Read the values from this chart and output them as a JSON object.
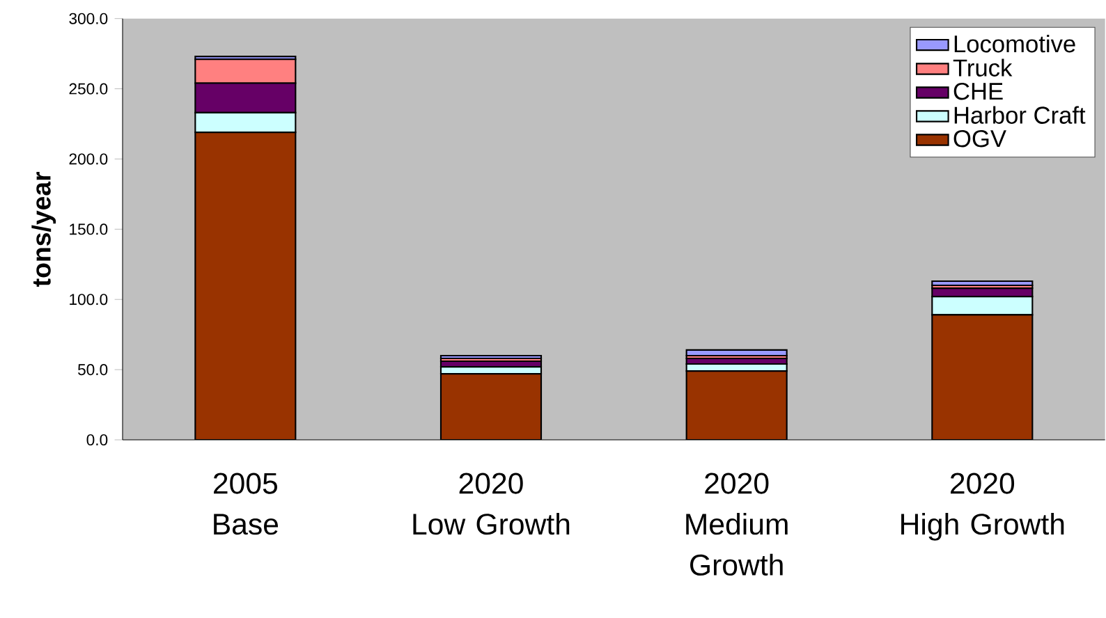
{
  "chart_data": {
    "type": "bar",
    "stacked": true,
    "ylabel": "tons/year",
    "categories": [
      "2005\nBase",
      "2020\nLow Growth",
      "2020\nMedium Growth",
      "2020\nHigh Growth"
    ],
    "series": [
      {
        "name": "OGV",
        "color": "#993300",
        "values": [
          219,
          47,
          49,
          89
        ]
      },
      {
        "name": "Harbor Craft",
        "color": "#ccffff",
        "values": [
          14,
          5,
          5,
          13
        ]
      },
      {
        "name": "CHE",
        "color": "#660066",
        "values": [
          21,
          4,
          4,
          6
        ]
      },
      {
        "name": "Truck",
        "color": "#ff8080",
        "values": [
          17,
          2,
          2,
          2
        ]
      },
      {
        "name": "Locomotive",
        "color": "#9999ff",
        "values": [
          2,
          2,
          4,
          3
        ]
      }
    ],
    "ylim": [
      0,
      300
    ],
    "yticks": [
      {
        "value": 0,
        "label": "0.0"
      },
      {
        "value": 50,
        "label": "50.0"
      },
      {
        "value": 100,
        "label": "100.0"
      },
      {
        "value": 150,
        "label": "150.0"
      },
      {
        "value": 200,
        "label": "200.0"
      },
      {
        "value": 250,
        "label": "250.0"
      },
      {
        "value": 300,
        "label": "300.0"
      }
    ],
    "legend": "top right",
    "grid": false
  }
}
